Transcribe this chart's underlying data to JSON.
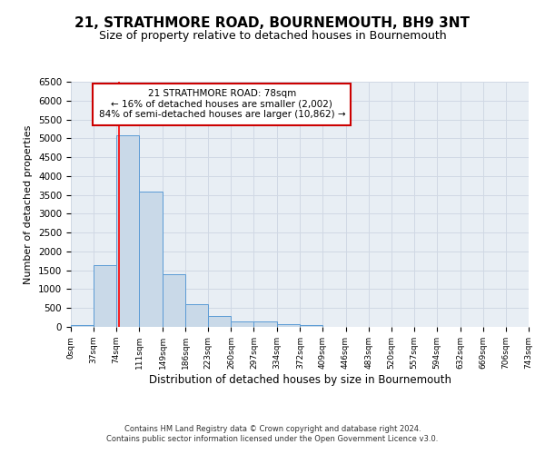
{
  "title": "21, STRATHMORE ROAD, BOURNEMOUTH, BH9 3NT",
  "subtitle": "Size of property relative to detached houses in Bournemouth",
  "xlabel": "Distribution of detached houses by size in Bournemouth",
  "ylabel": "Number of detached properties",
  "bin_edges": [
    0,
    37,
    74,
    111,
    149,
    186,
    223,
    260,
    297,
    334,
    372,
    409,
    446,
    483,
    520,
    557,
    594,
    632,
    669,
    706,
    743
  ],
  "bin_counts": [
    60,
    1640,
    5080,
    3580,
    1400,
    610,
    300,
    155,
    155,
    80,
    40,
    0,
    0,
    0,
    0,
    0,
    0,
    0,
    0,
    0
  ],
  "bar_color": "#c9d9e8",
  "bar_edge_color": "#5b9bd5",
  "red_line_x": 78,
  "annotation_title": "21 STRATHMORE ROAD: 78sqm",
  "annotation_line1": "← 16% of detached houses are smaller (2,002)",
  "annotation_line2": "84% of semi-detached houses are larger (10,862) →",
  "footer_line1": "Contains HM Land Registry data © Crown copyright and database right 2024.",
  "footer_line2": "Contains public sector information licensed under the Open Government Licence v3.0.",
  "ylim": [
    0,
    6500
  ],
  "yticks": [
    0,
    500,
    1000,
    1500,
    2000,
    2500,
    3000,
    3500,
    4000,
    4500,
    5000,
    5500,
    6000,
    6500
  ],
  "grid_color": "#d0d8e4",
  "background_color": "#e8eef4",
  "title_fontsize": 11,
  "subtitle_fontsize": 9
}
